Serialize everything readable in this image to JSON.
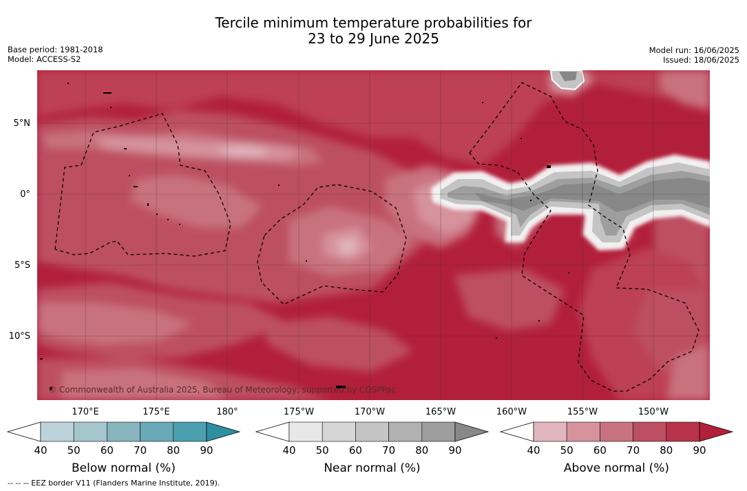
{
  "title": {
    "line1": "Tercile minimum temperature probabilities for",
    "line2": "23 to 29 June 2025"
  },
  "meta_left": {
    "base_period": "Base period: 1981-2018",
    "model": "Model: ACCESS-S2"
  },
  "meta_right": {
    "model_run": "Model run: 16/06/2025",
    "issued": "Issued: 18/06/2025"
  },
  "map": {
    "lat_labels": [
      "5°N",
      "0°",
      "5°S",
      "10°S"
    ],
    "lon_labels": [
      "170°E",
      "175°E",
      "180°",
      "175°W",
      "170°W",
      "165°W",
      "160°W",
      "155°W",
      "150°W"
    ],
    "copyright": "© Commonwealth of Australia 2025, Bureau of Meteorology, supported by COSPPac",
    "grid": true
  },
  "colorbars": [
    {
      "title": "Below normal (%)",
      "ticks": [
        "40",
        "50",
        "60",
        "70",
        "80",
        "90"
      ],
      "colors": [
        "#bdd3da",
        "#a6c6cd",
        "#88b4be",
        "#6aa9b7",
        "#4c9fae",
        "#2d8fa1"
      ]
    },
    {
      "title": "Near normal (%)",
      "ticks": [
        "40",
        "50",
        "60",
        "70",
        "80",
        "90"
      ],
      "colors": [
        "#e8e8e8",
        "#d6d6d6",
        "#c4c4c4",
        "#b1b1b1",
        "#9e9e9e",
        "#888888"
      ]
    },
    {
      "title": "Above normal (%)",
      "ticks": [
        "40",
        "50",
        "60",
        "70",
        "80",
        "90"
      ],
      "colors": [
        "#e0b5bd",
        "#d6939c",
        "#c9727f",
        "#bd4f62",
        "#b7344b",
        "#b2203b"
      ]
    }
  ],
  "footnote": "--  --  -- EEZ border V11 (Flanders Marine Institute, 2019)."
}
